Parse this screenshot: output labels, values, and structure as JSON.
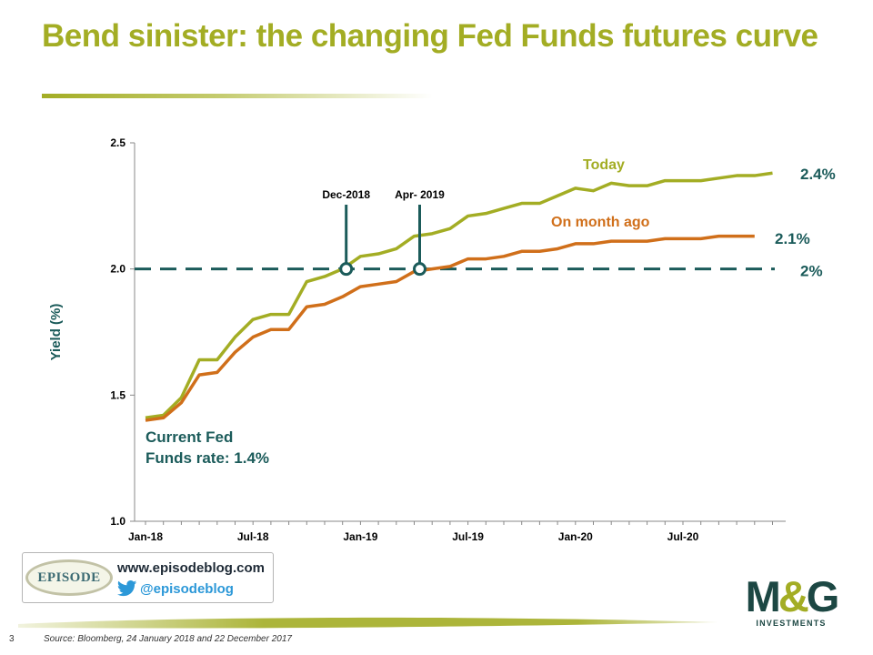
{
  "title": "Bend sinister: the changing Fed Funds futures curve",
  "colors": {
    "today": "#a3ad24",
    "month_ago": "#d06f1a",
    "dark_teal": "#1b5b5a",
    "accent_green": "#a3ad24"
  },
  "chart_data": {
    "type": "line",
    "ylabel": "Yield (%)",
    "ylim": [
      1.0,
      2.5
    ],
    "yticks": [
      "1.0",
      "1.5",
      "2.0",
      "2.5"
    ],
    "xtick_labels": [
      "Jan-18",
      "Jul-18",
      "Jan-19",
      "Jul-19",
      "Jan-20",
      "Jul-20"
    ],
    "x_months": [
      "Jan-18",
      "Feb-18",
      "Mar-18",
      "Apr-18",
      "May-18",
      "Jun-18",
      "Jul-18",
      "Aug-18",
      "Sep-18",
      "Oct-18",
      "Nov-18",
      "Dec-18",
      "Jan-19",
      "Feb-19",
      "Mar-19",
      "Apr-19",
      "May-19",
      "Jun-19",
      "Jul-19",
      "Aug-19",
      "Sep-19",
      "Oct-19",
      "Nov-19",
      "Dec-19",
      "Jan-20",
      "Feb-20",
      "Mar-20",
      "Apr-20",
      "May-20",
      "Jun-20",
      "Jul-20",
      "Aug-20",
      "Sep-20",
      "Oct-20",
      "Nov-20",
      "Dec-20"
    ],
    "series": [
      {
        "name": "Today",
        "color": "#a3ad24",
        "values": [
          1.41,
          1.42,
          1.49,
          1.64,
          1.64,
          1.73,
          1.8,
          1.82,
          1.82,
          1.95,
          1.97,
          2.0,
          2.05,
          2.06,
          2.08,
          2.13,
          2.14,
          2.16,
          2.21,
          2.22,
          2.24,
          2.26,
          2.26,
          2.29,
          2.32,
          2.31,
          2.34,
          2.33,
          2.33,
          2.35,
          2.35,
          2.35,
          2.36,
          2.37,
          2.37,
          2.38
        ]
      },
      {
        "name": "On month ago",
        "color": "#d06f1a",
        "values": [
          1.4,
          1.41,
          1.47,
          1.58,
          1.59,
          1.67,
          1.73,
          1.76,
          1.76,
          1.85,
          1.86,
          1.89,
          1.93,
          1.94,
          1.95,
          1.99,
          2.0,
          2.01,
          2.04,
          2.04,
          2.05,
          2.07,
          2.07,
          2.08,
          2.1,
          2.1,
          2.11,
          2.11,
          2.11,
          2.12,
          2.12,
          2.12,
          2.13,
          2.13,
          2.13
        ]
      }
    ],
    "reference_line": {
      "y": 2.0,
      "label": "2%",
      "style": "dashed"
    },
    "markers": [
      {
        "label": "Dec-2018",
        "month": "Dec-18",
        "y": 2.0
      },
      {
        "label": "Apr- 2019",
        "month": "Apr-19",
        "y": 2.0
      }
    ],
    "end_labels": {
      "today": "2.4%",
      "month_ago": "2.1%"
    },
    "annotations": [
      "Current Fed",
      "Funds rate: 1.4%"
    ],
    "legend_placement": "inline"
  },
  "branding": {
    "episode_logo_text": "EPISODE",
    "website": "www.episodeblog.com",
    "twitter_handle": "@episodeblog",
    "mg_mark": "M&G",
    "mg_sub": "INVESTMENTS"
  },
  "footer": {
    "page_number": "3",
    "source": "Source: Bloomberg, 24 January 2018 and 22 December 2017"
  }
}
